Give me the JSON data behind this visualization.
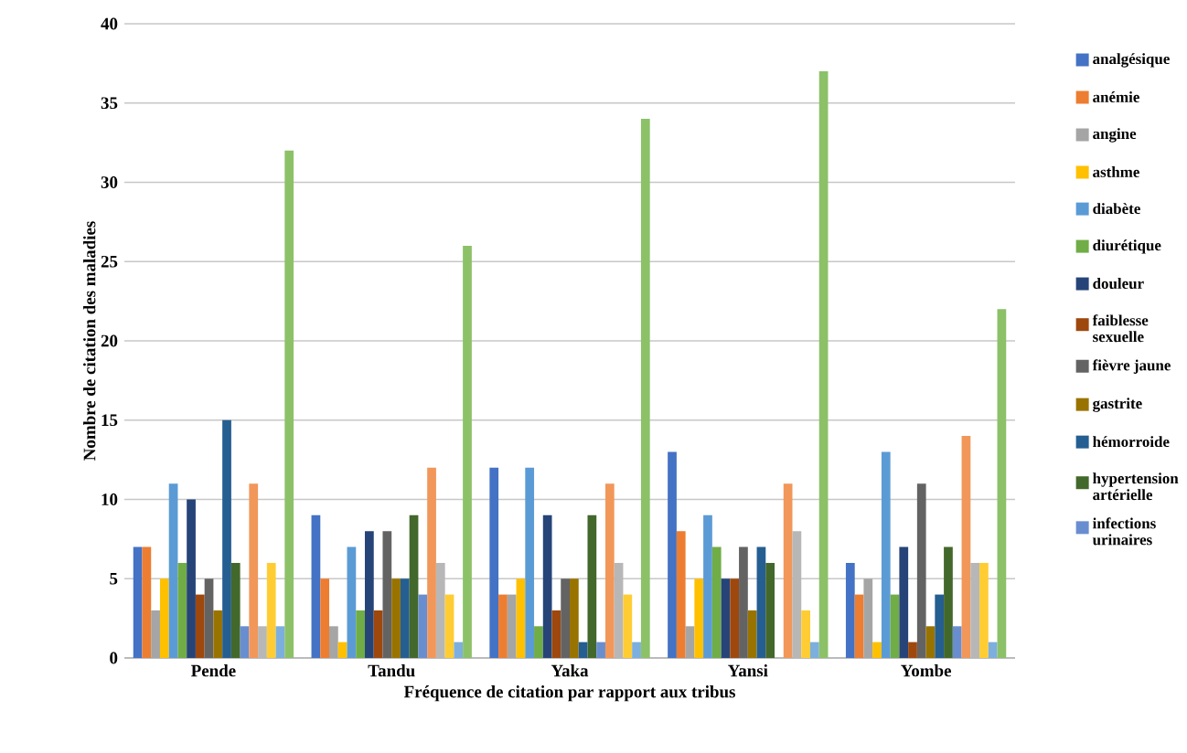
{
  "chart_data": {
    "type": "bar",
    "xlabel": "Fréquence de citation par rapport aux tribus",
    "ylabel": "Nombre de citation des maladies",
    "categories": [
      "Pende",
      "Tandu",
      "Yaka",
      "Yansi",
      "Yombe"
    ],
    "ylim": [
      0,
      40
    ],
    "yticks": [
      0,
      5,
      10,
      15,
      20,
      25,
      30,
      35,
      40
    ],
    "grid": "y",
    "legend": "right",
    "series": [
      {
        "name": "analgésique",
        "color": "#4472c4",
        "values": [
          7,
          9,
          12,
          13,
          6
        ]
      },
      {
        "name": "anémie",
        "color": "#ed7d31",
        "values": [
          7,
          5,
          4,
          8,
          4
        ]
      },
      {
        "name": "angine",
        "color": "#a5a5a5",
        "values": [
          3,
          2,
          4,
          2,
          5
        ]
      },
      {
        "name": "asthme",
        "color": "#ffc000",
        "values": [
          5,
          1,
          5,
          5,
          1
        ]
      },
      {
        "name": "diabète",
        "color": "#5b9bd5",
        "values": [
          11,
          7,
          12,
          9,
          13
        ]
      },
      {
        "name": "diurétique",
        "color": "#70ad47",
        "values": [
          6,
          3,
          2,
          7,
          4
        ]
      },
      {
        "name": "douleur",
        "color": "#264478",
        "values": [
          10,
          8,
          9,
          5,
          7
        ]
      },
      {
        "name": "faiblesse sexuelle",
        "color": "#9e480e",
        "values": [
          4,
          3,
          3,
          5,
          1
        ]
      },
      {
        "name": "fièvre jaune",
        "color": "#636363",
        "values": [
          5,
          8,
          5,
          7,
          11
        ]
      },
      {
        "name": "gastrite",
        "color": "#997300",
        "values": [
          3,
          5,
          5,
          3,
          2
        ]
      },
      {
        "name": "hémorroide",
        "color": "#255e91",
        "values": [
          15,
          5,
          1,
          7,
          4
        ]
      },
      {
        "name": "hypertension artérielle",
        "color": "#43682b",
        "values": [
          6,
          9,
          9,
          6,
          7
        ]
      },
      {
        "name": "infections urinaires",
        "color": "#698ed0",
        "values": [
          2,
          4,
          1,
          0,
          2
        ]
      },
      {
        "color": "#f1975a",
        "values": [
          11,
          12,
          11,
          11,
          14
        ]
      },
      {
        "color": "#b7b7b7",
        "values": [
          2,
          6,
          6,
          8,
          6
        ]
      },
      {
        "color": "#ffcd33",
        "values": [
          6,
          4,
          4,
          3,
          6
        ]
      },
      {
        "color": "#7cafdd",
        "values": [
          2,
          1,
          1,
          1,
          1
        ]
      },
      {
        "color": "#8cc168",
        "values": [
          32,
          26,
          34,
          37,
          22
        ]
      }
    ]
  }
}
